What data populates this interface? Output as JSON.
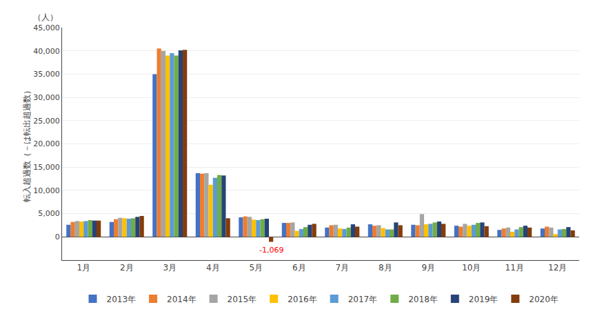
{
  "chart_data": {
    "type": "bar",
    "categories": [
      "1月",
      "2月",
      "3月",
      "4月",
      "5月",
      "6月",
      "7月",
      "8月",
      "9月",
      "10月",
      "11月",
      "12月"
    ],
    "series": [
      {
        "name": "2013年",
        "color": "#4472C4",
        "values": [
          2600,
          3200,
          35000,
          13700,
          4200,
          3000,
          2000,
          2700,
          2600,
          2400,
          1500,
          1800
        ]
      },
      {
        "name": "2014年",
        "color": "#ED7D31",
        "values": [
          3200,
          3800,
          40500,
          13600,
          4400,
          3000,
          2500,
          2400,
          2500,
          2200,
          1800,
          2200
        ]
      },
      {
        "name": "2015年",
        "color": "#A5A5A5",
        "values": [
          3400,
          4100,
          40000,
          13700,
          4300,
          3100,
          2600,
          2500,
          4900,
          2800,
          2000,
          2000
        ]
      },
      {
        "name": "2016年",
        "color": "#FFC000",
        "values": [
          3300,
          4000,
          39000,
          11200,
          3700,
          1300,
          1800,
          1900,
          2700,
          2400,
          1100,
          600
        ]
      },
      {
        "name": "2017年",
        "color": "#5B9BD5",
        "values": [
          3400,
          3900,
          39500,
          12700,
          3600,
          1700,
          1700,
          1600,
          2800,
          2600,
          1600,
          1600
        ]
      },
      {
        "name": "2018年",
        "color": "#70AD47",
        "values": [
          3600,
          4000,
          39000,
          13300,
          3800,
          2100,
          2000,
          1600,
          3100,
          3000,
          2100,
          1700
        ]
      },
      {
        "name": "2019年",
        "color": "#264478",
        "values": [
          3500,
          4300,
          40100,
          13200,
          3900,
          2600,
          2700,
          3100,
          3300,
          3100,
          2400,
          2100
        ]
      },
      {
        "name": "2020年",
        "color": "#843C0C",
        "values": [
          3500,
          4500,
          40200,
          4000,
          -1069,
          2800,
          2200,
          2500,
          2800,
          2300,
          2000,
          1400
        ]
      }
    ],
    "ylabel": "転入超過数（－は転出超過数）",
    "ylim": [
      -5000,
      45000
    ],
    "yticks": [
      0,
      {
        "value": 5000,
        "label": "5,000"
      },
      {
        "value": 10000,
        "label": "10,000"
      },
      {
        "value": 15000,
        "label": "15,000"
      },
      {
        "value": 20000,
        "label": "20,000"
      },
      {
        "value": 25000,
        "label": "25,000"
      },
      {
        "value": 30000,
        "label": "30,000"
      },
      {
        "value": 35000,
        "label": "35,000"
      },
      {
        "value": 40000,
        "label": "40,000"
      },
      {
        "value": 45000,
        "label": "45,000"
      }
    ],
    "annotations": [
      {
        "text": "（人）"
      },
      {
        "text": "-1,069",
        "color": "#FF0000",
        "category": "5月",
        "series": "2020年"
      }
    ],
    "grid": true,
    "legend": "bottom"
  }
}
